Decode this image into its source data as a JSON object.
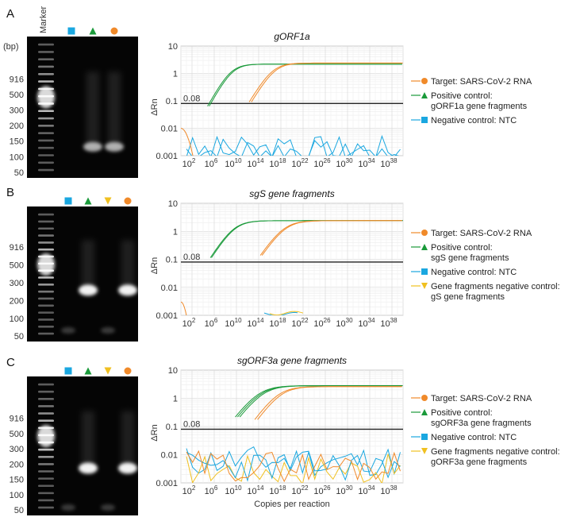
{
  "panels": [
    {
      "letter": "A",
      "gel": {
        "header_marker": "Marker",
        "bp_unit": "(bp)",
        "ladder_labels": [
          "916",
          "500",
          "300",
          "200",
          "150",
          "100",
          "50"
        ],
        "lane_symbols": [
          "square",
          "triangle-up",
          "circle"
        ],
        "lane_colors": [
          "#1aa7e0",
          "#1a9a3a",
          "#f08a2a"
        ],
        "bright_lane_indexes": [
          1,
          2
        ],
        "band_levels": [
          "low",
          "low"
        ]
      },
      "plot": {
        "title": "gORF1a",
        "ylabel": "ΔRn",
        "threshold_label": "0.08",
        "legend": [
          {
            "marker": "circle",
            "color": "#f08a2a",
            "text": "Target: SARS-CoV-2 RNA",
            "subtext": ""
          },
          {
            "marker": "triangle-up",
            "color": "#1a9a3a",
            "text": "Positive control:",
            "subtext": "gORF1a gene fragments"
          },
          {
            "marker": "square",
            "color": "#1aa7e0",
            "text": "Negative control: NTC",
            "subtext": ""
          }
        ]
      }
    },
    {
      "letter": "B",
      "gel": {
        "header_marker": "",
        "bp_unit": "",
        "ladder_labels": [
          "916",
          "500",
          "300",
          "200",
          "100",
          "50"
        ],
        "lane_symbols": [
          "square",
          "triangle-up",
          "triangle-down",
          "circle"
        ],
        "lane_colors": [
          "#1aa7e0",
          "#1a9a3a",
          "#f0c020",
          "#f08a2a"
        ],
        "bright_lane_indexes": [
          1,
          3
        ],
        "band_levels": [
          "mid",
          "mid"
        ]
      },
      "plot": {
        "title": "sgS gene fragments",
        "ylabel": "ΔRn",
        "threshold_label": "0.08",
        "legend": [
          {
            "marker": "circle",
            "color": "#f08a2a",
            "text": "Target: SARS-CoV-2 RNA",
            "subtext": ""
          },
          {
            "marker": "triangle-up",
            "color": "#1a9a3a",
            "text": "Positive control:",
            "subtext": "sgS gene fragments"
          },
          {
            "marker": "square",
            "color": "#1aa7e0",
            "text": "Negative control: NTC",
            "subtext": ""
          },
          {
            "marker": "triangle-down",
            "color": "#f0c020",
            "text": "Gene fragments negative control:",
            "subtext": "gS gene fragments"
          }
        ]
      }
    },
    {
      "letter": "C",
      "gel": {
        "header_marker": "",
        "bp_unit": "",
        "ladder_labels": [
          "916",
          "500",
          "300",
          "200",
          "150",
          "100",
          "50"
        ],
        "lane_symbols": [
          "square",
          "triangle-up",
          "triangle-down",
          "circle"
        ],
        "lane_colors": [
          "#1aa7e0",
          "#1a9a3a",
          "#f0c020",
          "#f08a2a"
        ],
        "bright_lane_indexes": [
          1,
          3
        ],
        "band_levels": [
          "high",
          "high"
        ]
      },
      "plot": {
        "title": "sgORF3a gene fragments",
        "ylabel": "ΔRn",
        "xlabel": "Copies per reaction",
        "threshold_label": "0.08",
        "legend": [
          {
            "marker": "circle",
            "color": "#f08a2a",
            "text": "Target: SARS-CoV-2 RNA",
            "subtext": ""
          },
          {
            "marker": "triangle-up",
            "color": "#1a9a3a",
            "text": "Positive control:",
            "subtext": "sgORF3a gene fragments"
          },
          {
            "marker": "square",
            "color": "#1aa7e0",
            "text": "Negative control: NTC",
            "subtext": ""
          },
          {
            "marker": "triangle-down",
            "color": "#f0c020",
            "text": "Gene fragments negative control:",
            "subtext": "gORF3a gene fragments"
          }
        ]
      }
    }
  ],
  "chart_data": [
    {
      "type": "line",
      "title": "gORF1a",
      "xlabel": "",
      "ylabel": "ΔRn",
      "xscale": "log",
      "yscale": "log",
      "xticks": [
        "10^2",
        "10^6",
        "10^10",
        "10^14",
        "10^18",
        "10^22",
        "10^26",
        "10^30",
        "10^34",
        "10^38"
      ],
      "yticks": [
        "0.001",
        "0.01",
        "0.1",
        "1",
        "10"
      ],
      "ylim": [
        0.001,
        10
      ],
      "xlim_log10": [
        0,
        40
      ],
      "threshold": 0.08,
      "series": [
        {
          "color": "#1a9a3a",
          "kind": "sigmoid",
          "midpoint_log10": 9,
          "width": 1.2,
          "plateau": 2.2
        },
        {
          "color": "#1a9a3a",
          "kind": "sigmoid",
          "midpoint_log10": 9.3,
          "width": 1.2,
          "plateau": 2.2
        },
        {
          "color": "#f08a2a",
          "kind": "sigmoid",
          "midpoint_log10": 16.5,
          "width": 1.3,
          "plateau": 2.4
        },
        {
          "color": "#f08a2a",
          "kind": "sigmoid",
          "midpoint_log10": 16.9,
          "width": 1.3,
          "plateau": 2.4
        },
        {
          "color": "#1aa7e0",
          "kind": "noise",
          "seed": 3
        },
        {
          "color": "#f08a2a",
          "kind": "decay",
          "start": 0.01,
          "end_log10": 3
        },
        {
          "color": "#1aa7e0",
          "kind": "noise",
          "seed": 7
        }
      ]
    },
    {
      "type": "line",
      "title": "sgS gene fragments",
      "xlabel": "",
      "ylabel": "ΔRn",
      "xscale": "log",
      "yscale": "log",
      "xticks": [
        "10^2",
        "10^6",
        "10^10",
        "10^14",
        "10^18",
        "10^22",
        "10^26",
        "10^30",
        "10^34",
        "10^38"
      ],
      "yticks": [
        "0.001",
        "0.01",
        "0.1",
        "1",
        "10"
      ],
      "ylim": [
        0.001,
        10
      ],
      "xlim_log10": [
        0,
        40
      ],
      "threshold": 0.08,
      "series": [
        {
          "color": "#1a9a3a",
          "kind": "sigmoid",
          "midpoint_log10": 9.5,
          "width": 1.4,
          "plateau": 2.4
        },
        {
          "color": "#1a9a3a",
          "kind": "sigmoid",
          "midpoint_log10": 9.7,
          "width": 1.4,
          "plateau": 2.4
        },
        {
          "color": "#f08a2a",
          "kind": "sigmoid",
          "midpoint_log10": 18.5,
          "width": 1.5,
          "plateau": 2.4
        },
        {
          "color": "#f08a2a",
          "kind": "sigmoid",
          "midpoint_log10": 18.8,
          "width": 1.5,
          "plateau": 2.4
        },
        {
          "color": "#1aa7e0",
          "kind": "flat",
          "level": 0.0011,
          "from_log10": 15,
          "to_log10": 21
        },
        {
          "color": "#f0c020",
          "kind": "flat",
          "level": 0.0012,
          "from_log10": 16,
          "to_log10": 22
        },
        {
          "color": "#f08a2a",
          "kind": "decay",
          "start": 0.003,
          "end_log10": 2
        }
      ]
    },
    {
      "type": "line",
      "title": "sgORF3a gene fragments",
      "xlabel": "Copies per reaction",
      "ylabel": "ΔRn",
      "xscale": "log",
      "yscale": "log",
      "xticks": [
        "10^2",
        "10^6",
        "10^10",
        "10^14",
        "10^18",
        "10^22",
        "10^26",
        "10^30",
        "10^34",
        "10^38"
      ],
      "yticks": [
        "0.001",
        "0.01",
        "0.1",
        "1",
        "10"
      ],
      "ylim": [
        0.001,
        10
      ],
      "xlim_log10": [
        0,
        40
      ],
      "threshold": 0.08,
      "series": [
        {
          "color": "#1a9a3a",
          "kind": "sigmoid",
          "midpoint_log10": 14,
          "width": 1.7,
          "plateau": 2.8
        },
        {
          "color": "#1a9a3a",
          "kind": "sigmoid",
          "midpoint_log10": 14.4,
          "width": 1.7,
          "plateau": 2.8
        },
        {
          "color": "#1a9a3a",
          "kind": "sigmoid",
          "midpoint_log10": 14.8,
          "width": 1.7,
          "plateau": 2.8
        },
        {
          "color": "#f08a2a",
          "kind": "sigmoid",
          "midpoint_log10": 17.5,
          "width": 1.6,
          "plateau": 2.6
        },
        {
          "color": "#f08a2a",
          "kind": "sigmoid",
          "midpoint_log10": 18,
          "width": 1.6,
          "plateau": 2.6
        },
        {
          "color": "#1aa7e0",
          "kind": "noise",
          "seed": 11,
          "level": 0.006
        },
        {
          "color": "#f0c020",
          "kind": "noise",
          "seed": 17,
          "level": 0.003
        },
        {
          "color": "#1aa7e0",
          "kind": "noise",
          "seed": 23,
          "level": 0.004
        },
        {
          "color": "#f08a2a",
          "kind": "noise",
          "seed": 29,
          "level": 0.004
        }
      ]
    }
  ]
}
